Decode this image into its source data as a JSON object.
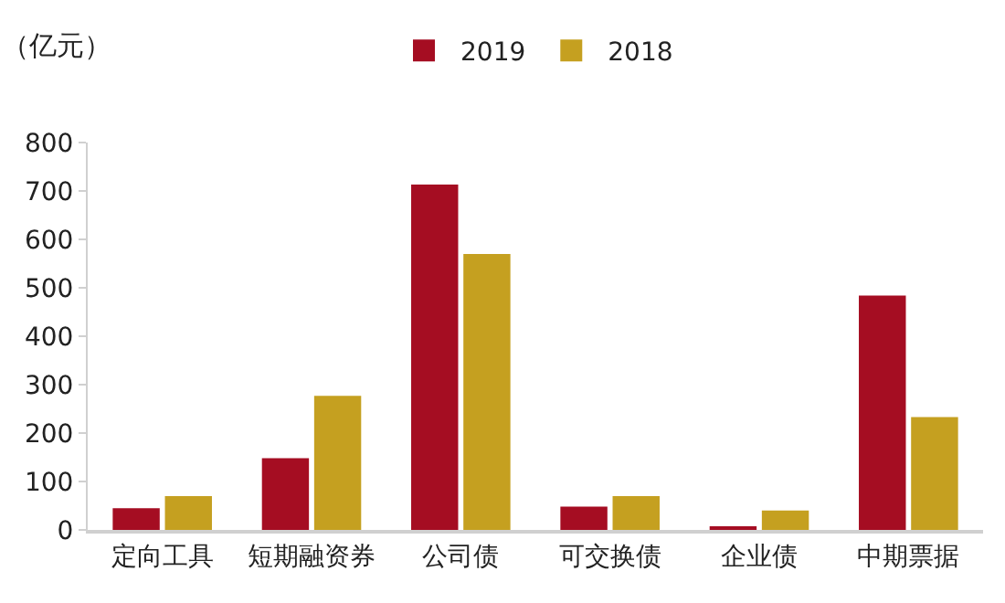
{
  "chart_data": {
    "type": "bar",
    "ylabel": "（亿元）",
    "categories": [
      "定向工具",
      "短期融资券",
      "公司债",
      "可交换债",
      "企业债",
      "中期票据"
    ],
    "series": [
      {
        "name": "2019",
        "color": "#a50d22",
        "values": [
          45,
          148,
          713,
          48,
          5,
          484
        ]
      },
      {
        "name": "2018",
        "color": "#c5a020",
        "values": [
          70,
          277,
          570,
          70,
          40,
          233
        ]
      }
    ],
    "ylim": [
      0,
      800
    ],
    "yticks": [
      0,
      100,
      200,
      300,
      400,
      500,
      600,
      700,
      800
    ],
    "grid": false,
    "legend": "top"
  }
}
